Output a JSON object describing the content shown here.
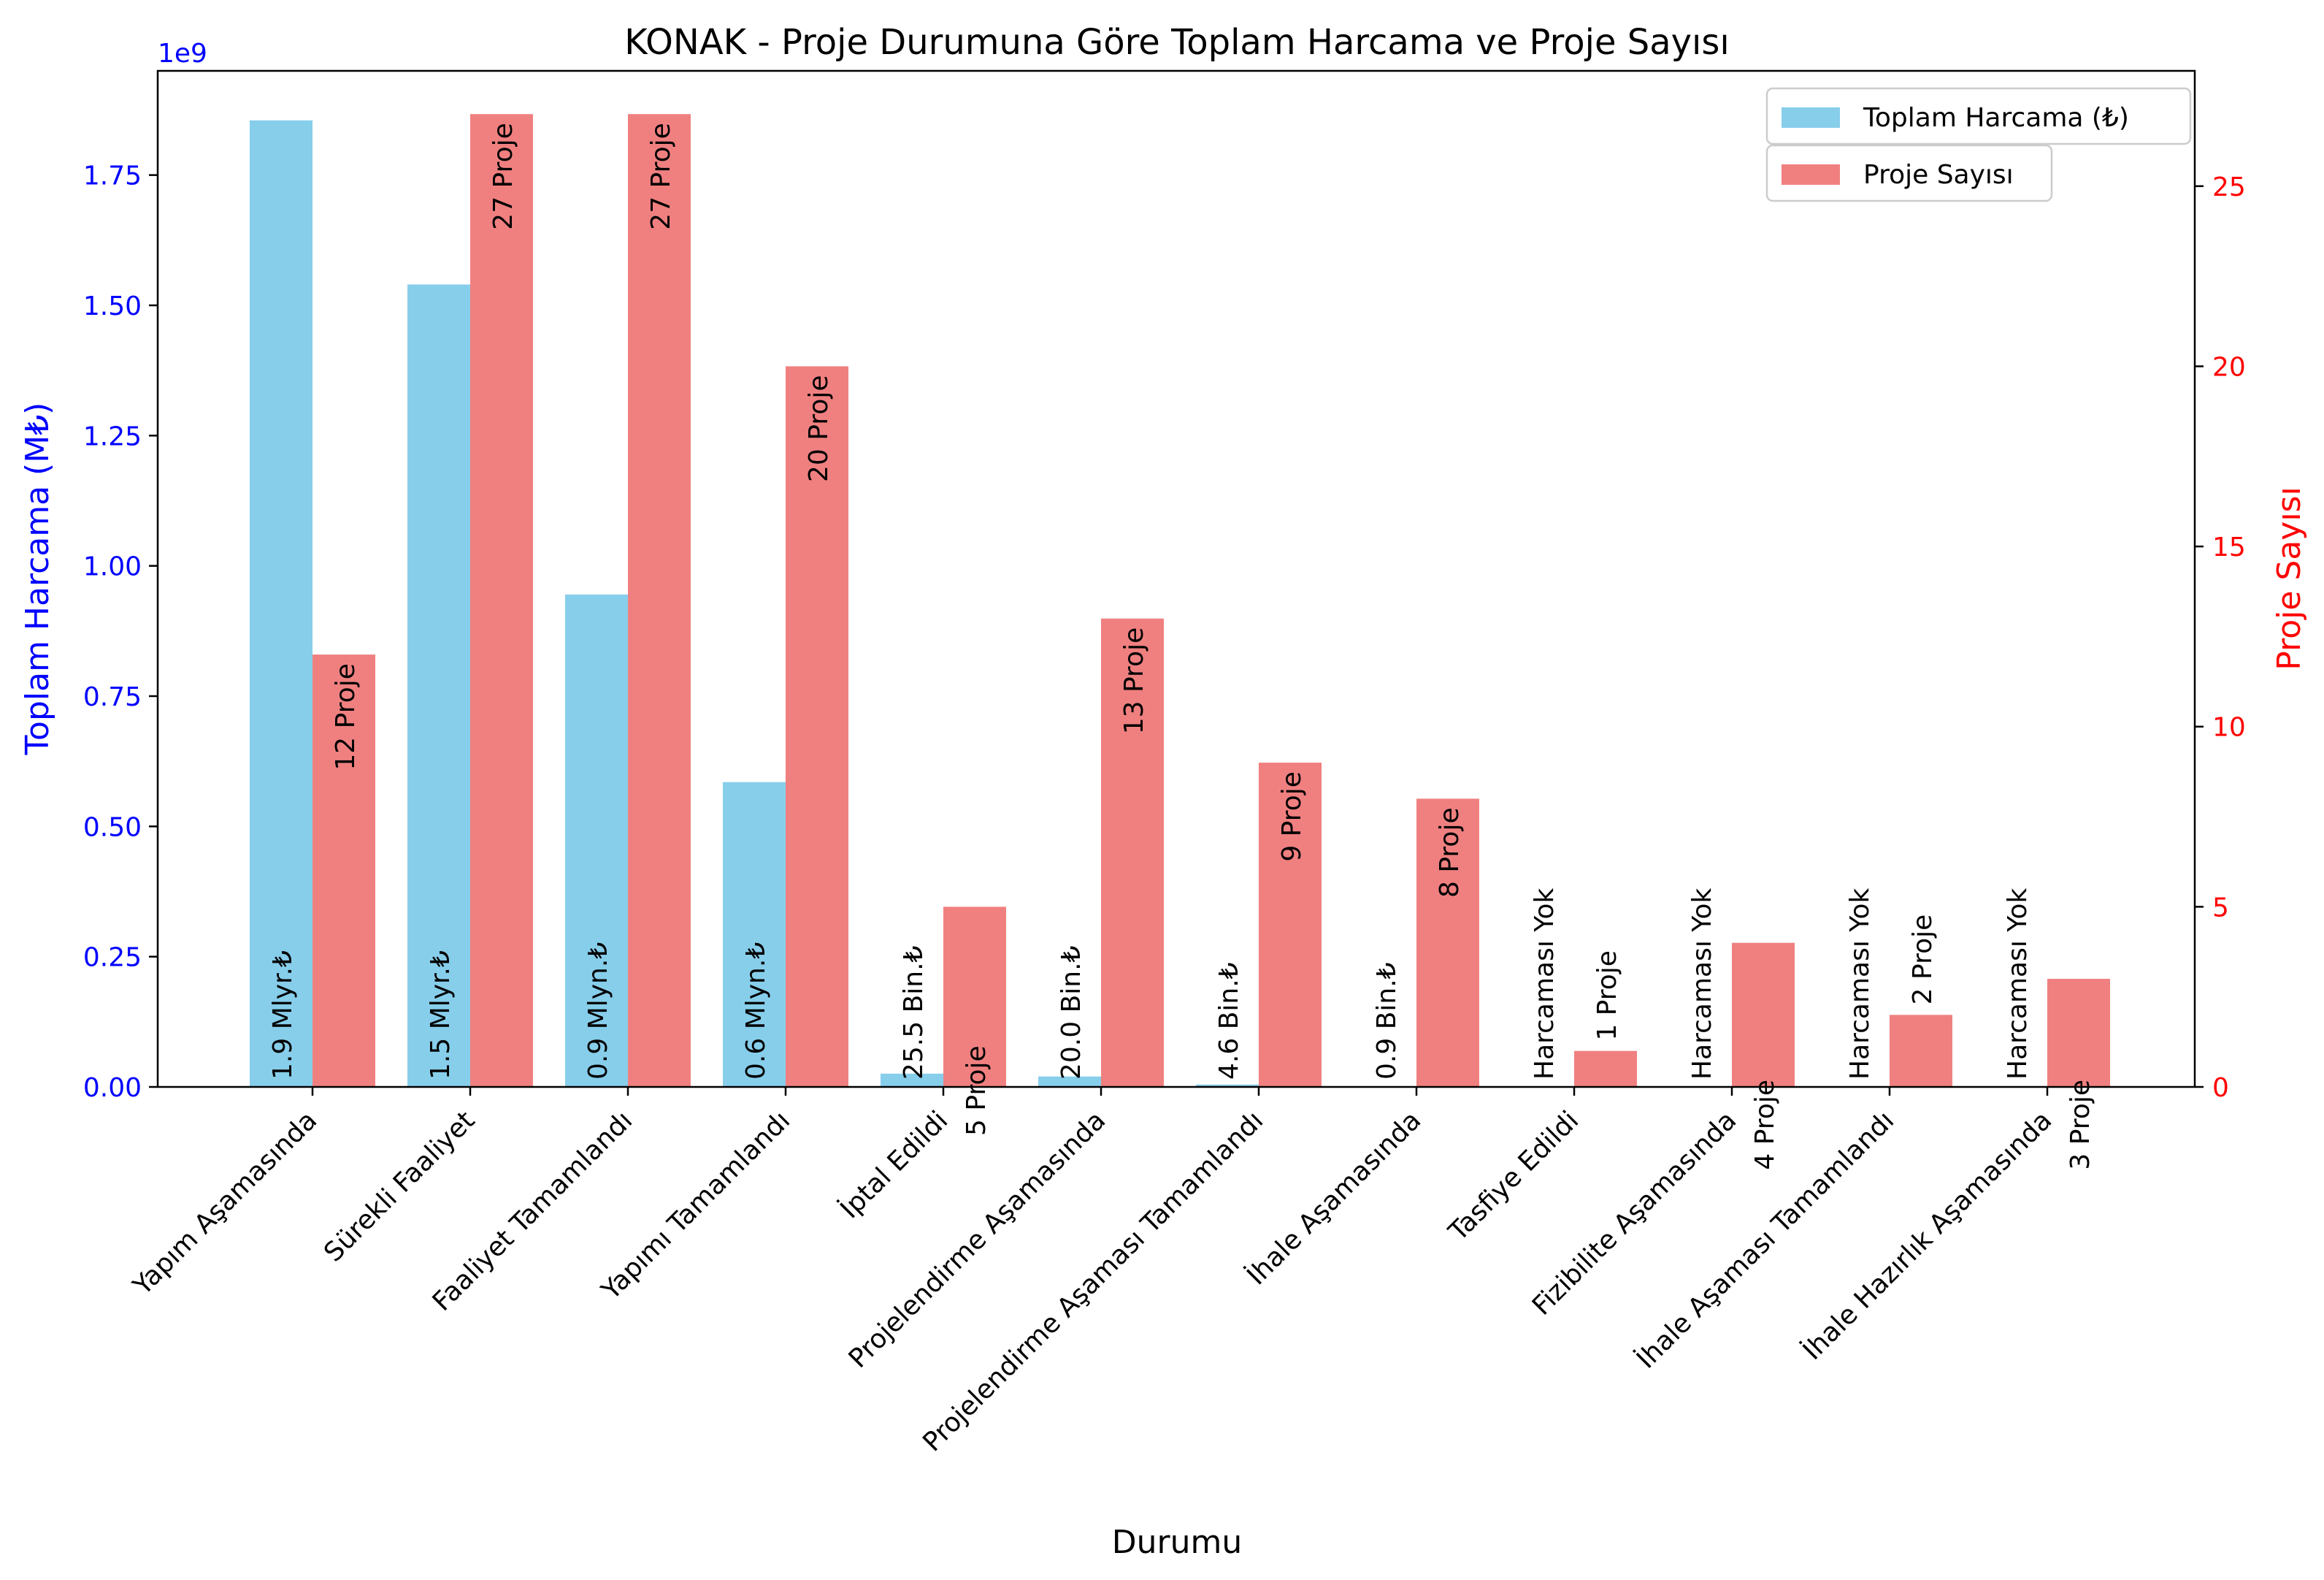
{
  "chart_data": {
    "type": "bar",
    "title": "KONAK - Proje Durumuna Göre Toplam Harcama ve Proje Sayısı",
    "xlabel": "Durumu",
    "ylabel_left": "Toplam Harcama (M₺)",
    "ylabel_right": "Proje Sayısı",
    "left_axis_multiplier": "1e9",
    "ylim_left": [
      0,
      1.95
    ],
    "ylim_right": [
      0,
      28.2
    ],
    "left_ticks": [
      "0.00",
      "0.25",
      "0.50",
      "0.75",
      "1.00",
      "1.25",
      "1.50",
      "1.75"
    ],
    "right_ticks": [
      "0",
      "5",
      "10",
      "15",
      "20",
      "25"
    ],
    "left_axis_color": "#0000ff",
    "right_axis_color": "#ff0000",
    "grid": false,
    "legend_position": "top-right",
    "categories": [
      "Yapım Aşamasında",
      "Sürekli Faaliyet",
      "Faaliyet Tamamlandı",
      "Yapımı Tamamlandı",
      "İptal Edildi",
      "Projelendirme Aşamasında",
      "Projelendirme Aşaması Tamamlandı",
      "İhale Aşamasında",
      "Tasfiye Edildi",
      "Fizibilite Aşamasında",
      "İhale Aşaması Tamamlandı",
      "İhale Hazırlık Aşamasında"
    ],
    "series": [
      {
        "name": "Toplam Harcama (₺)",
        "axis": "left",
        "color": "#87ceeb",
        "values": [
          1.855,
          1.54,
          0.945,
          0.585,
          0.0255,
          0.02,
          0.0046,
          0.0009,
          0,
          0,
          0,
          0
        ],
        "labels": [
          "1.9 Mlyr.₺",
          "1.5 Mlyr.₺",
          "0.9 Mlyn.₺",
          "0.6 Mlyn.₺",
          "25.5 Bin.₺",
          "20.0 Bin.₺",
          "4.6 Bin.₺",
          "0.9 Bin.₺",
          "Harcaması Yok",
          "Harcaması Yok",
          "Harcaması Yok",
          "Harcaması Yok"
        ]
      },
      {
        "name": "Proje Sayısı",
        "axis": "right",
        "color": "#f08080",
        "values": [
          12,
          27,
          27,
          20,
          5,
          13,
          9,
          8,
          1,
          4,
          2,
          3
        ],
        "labels": [
          "12 Proje",
          "27 Proje",
          "27 Proje",
          "20 Proje",
          "5 Proje",
          "13 Proje",
          "9 Proje",
          "8 Proje",
          "1 Proje",
          "4 Proje",
          "2 Proje",
          "3 Proje"
        ]
      }
    ]
  }
}
